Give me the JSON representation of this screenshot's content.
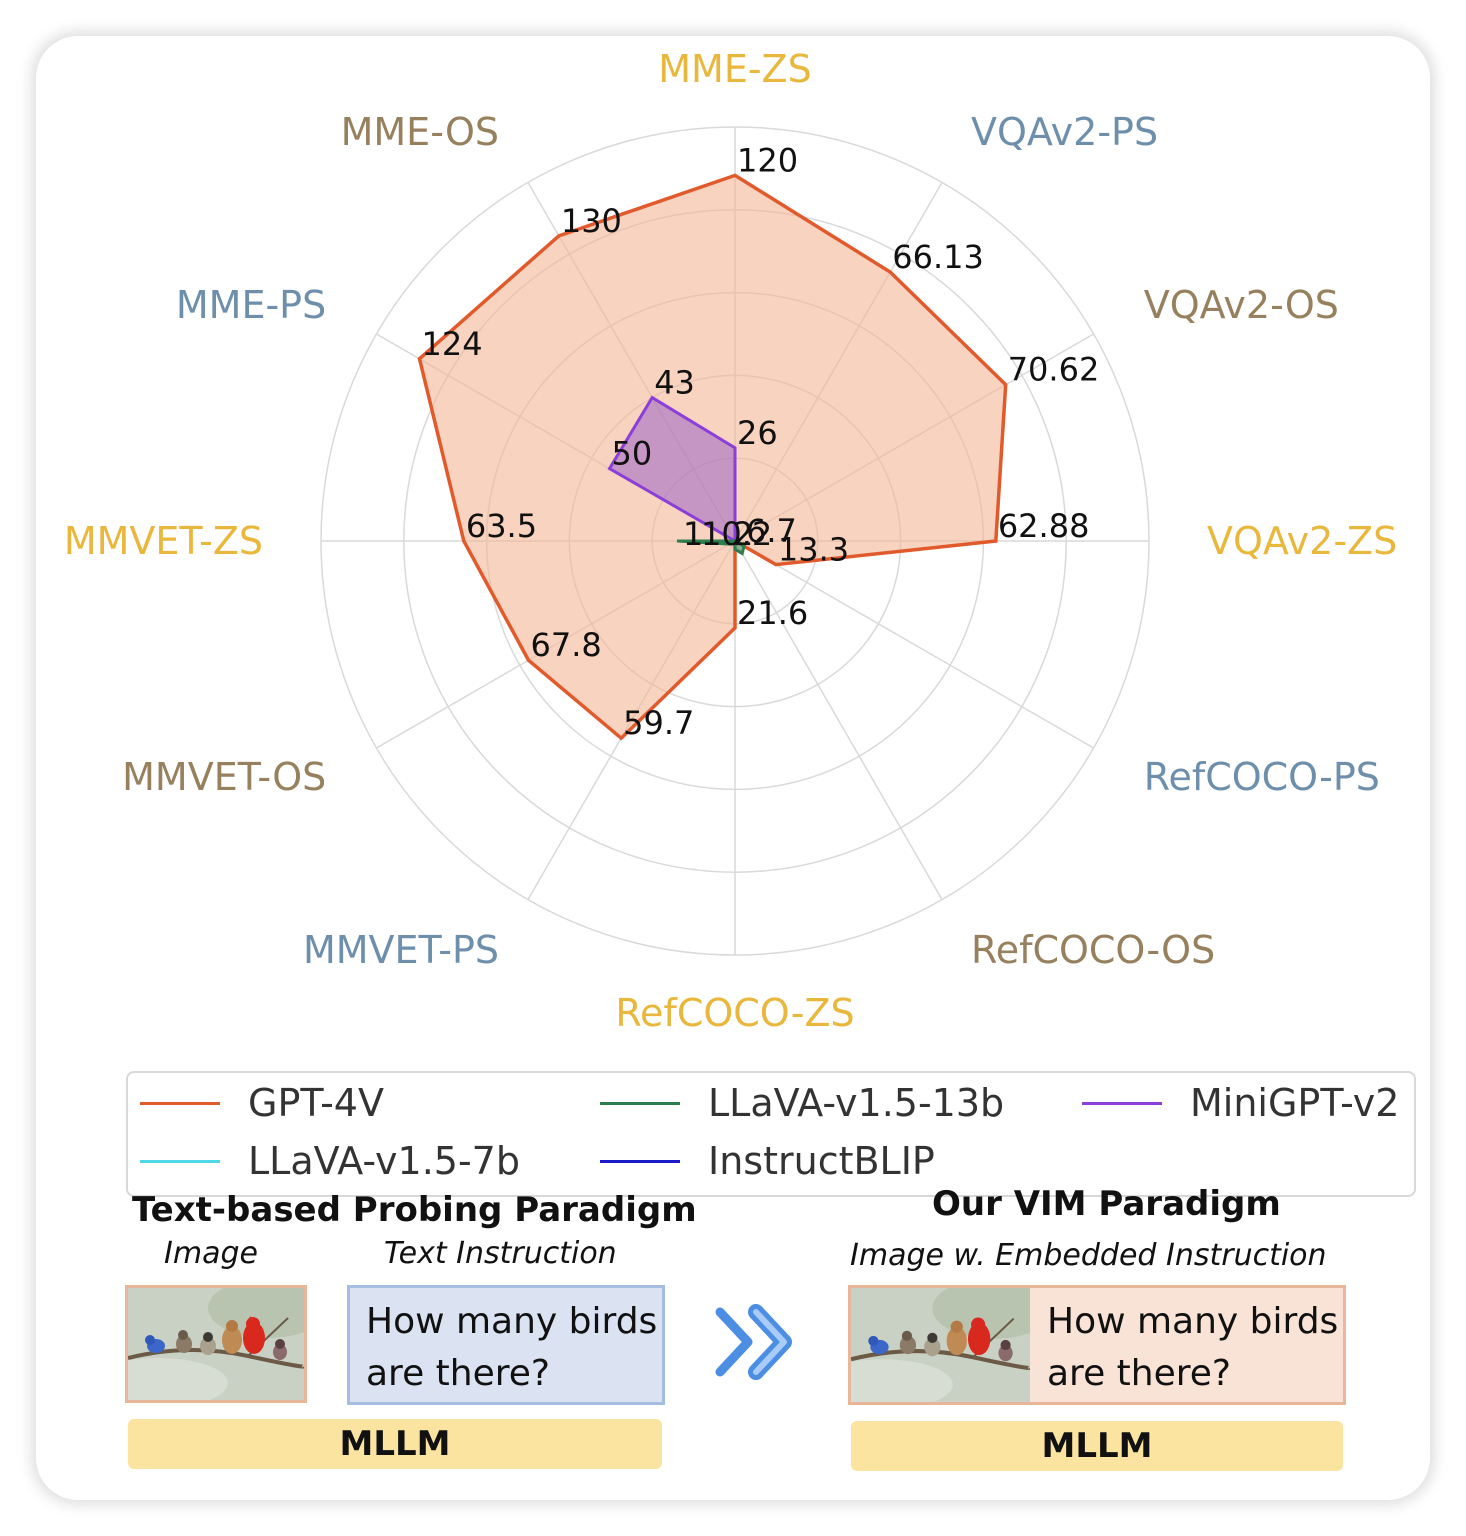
{
  "chart_data": {
    "type": "radar",
    "axes": [
      {
        "label": "MME-ZS",
        "color": "#e9b73c"
      },
      {
        "label": "VQAv2-PS",
        "color": "#6e8fab"
      },
      {
        "label": "VQAv2-OS",
        "color": "#97805e"
      },
      {
        "label": "VQAv2-ZS",
        "color": "#e9b73c"
      },
      {
        "label": "RefCOCO-PS",
        "color": "#6e8fab"
      },
      {
        "label": "RefCOCO-OS",
        "color": "#97805e"
      },
      {
        "label": "RefCOCO-ZS",
        "color": "#e9b73c"
      },
      {
        "label": "MMVET-PS",
        "color": "#6e8fab"
      },
      {
        "label": "MMVET-OS",
        "color": "#97805e"
      },
      {
        "label": "MMVET-ZS",
        "color": "#e9b73c"
      },
      {
        "label": "MME-PS",
        "color": "#6e8fab"
      },
      {
        "label": "MME-OS",
        "color": "#97805e"
      }
    ],
    "grid": true,
    "series": [
      {
        "name": "GPT-4V",
        "color": "#e15a2c",
        "fill": "#f4b596",
        "values": [
          0.883,
          0.75,
          0.755,
          0.63,
          0.114,
          0.0,
          0.21,
          0.55,
          0.576,
          0.655,
          0.88,
          0.851
        ],
        "labels": [
          "120",
          "66.13",
          "70.62",
          "62.88",
          "13.3",
          "",
          "21.6",
          "59.7",
          "67.8",
          "63.5",
          "124",
          "130"
        ]
      },
      {
        "name": "MiniGPT-v2",
        "color": "#8c3fd8",
        "fill": "#9a63c4",
        "values": [
          0.225,
          0.0,
          0.0,
          0.0,
          0.0,
          0.0,
          0.0,
          0.0,
          0.0,
          0.0,
          0.35,
          0.4
        ],
        "labels": [
          "26",
          "",
          "",
          "",
          "",
          "",
          "",
          "",
          "",
          "",
          "50",
          "43"
        ]
      },
      {
        "name": "LLaVA-v1.5-13b",
        "color": "#2e7d4f",
        "fill": "#2e7d4f",
        "values": [
          0.0,
          0.0,
          0.0,
          0.005,
          0.025,
          0.035,
          0.02,
          0.0,
          0.015,
          0.14,
          0.0,
          0.0
        ],
        "labels": [
          "",
          "",
          "",
          "",
          "6.7",
          "",
          "",
          "",
          "",
          "",
          "",
          ""
        ]
      },
      {
        "name": "LLaVA-v1.5-7b",
        "color": "#4fd8e6",
        "fill": "#4fd8e6",
        "values": [
          0.0,
          0.0,
          0.0,
          0.0,
          0.0,
          0.0,
          0.0,
          0.0,
          0.0,
          0.0,
          0.0,
          0.0
        ],
        "labels": [
          "",
          "",
          "",
          "",
          "",
          "",
          "",
          "",
          "",
          "",
          "",
          ""
        ]
      },
      {
        "name": "InstructBLIP",
        "color": "#1a1ac7",
        "fill": "#1a1ac7",
        "values": [
          0.0,
          0.0,
          0.0,
          0.0,
          0.0,
          0.0,
          0.0,
          0.0,
          0.0,
          0.0,
          0.0,
          0.0
        ],
        "labels": [
          "",
          "",
          "",
          "",
          "",
          "",
          "",
          "",
          "",
          "",
          "",
          ""
        ]
      }
    ],
    "center_labels": [
      "1",
      "10.2",
      "2"
    ],
    "legend": {
      "placement": "bottom",
      "columns": 3
    }
  },
  "sections": {
    "left": {
      "title": "Text-based Probing Paradigm",
      "image_caption": "Image",
      "text_caption": "Text Instruction",
      "question_line1": "How many birds",
      "question_line2": "are there?",
      "model": "MLLM"
    },
    "right": {
      "title": "Our VIM Paradigm",
      "image_caption": "Image w. Embedded Instruction",
      "question_line1": "How many birds",
      "question_line2": "are there?",
      "model": "MLLM"
    }
  }
}
